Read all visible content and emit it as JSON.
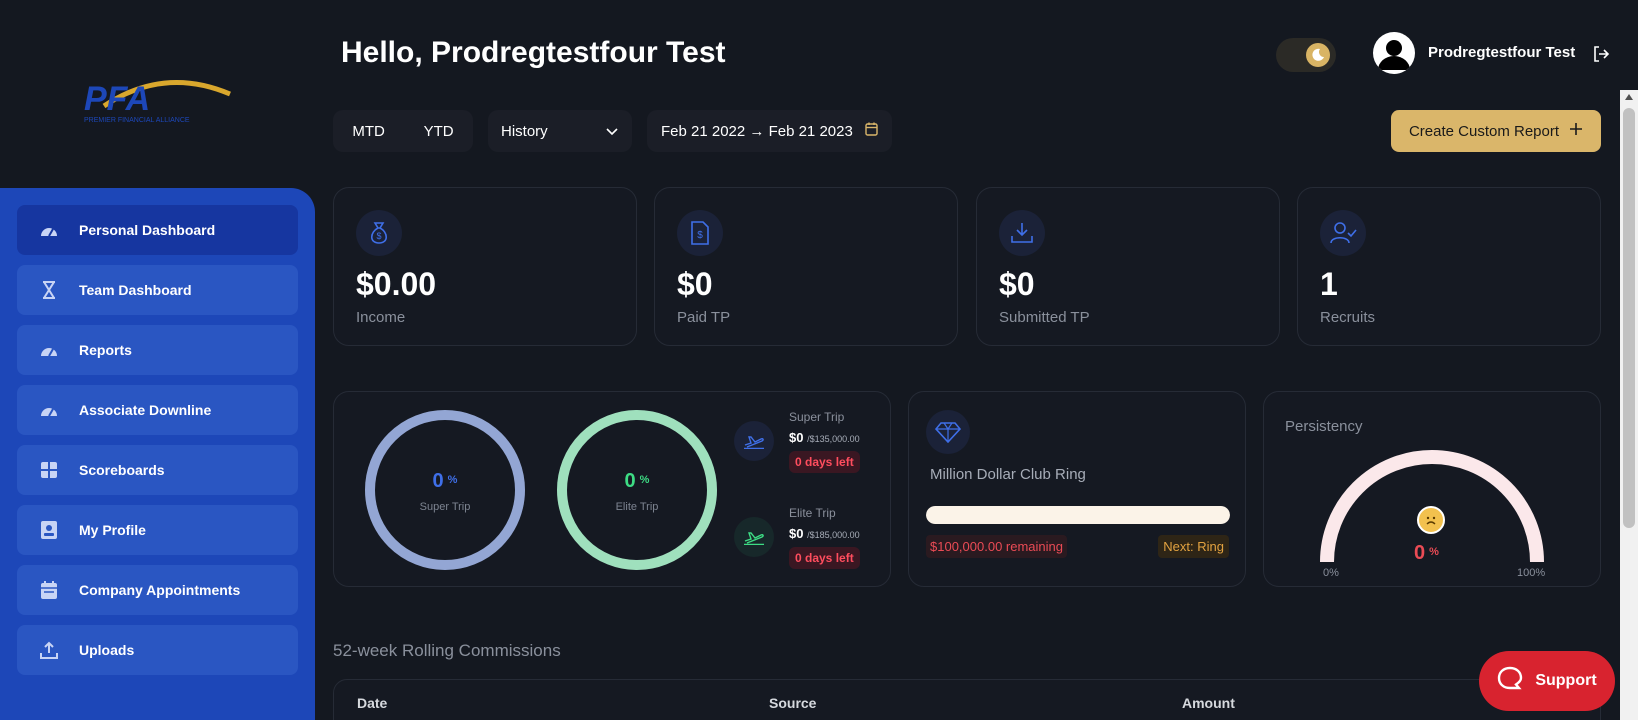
{
  "brand": {
    "logo_text": "PFA",
    "logo_subtext": "PREMIER FINANCIAL ALLIANCE"
  },
  "header": {
    "greeting": "Hello, Prodregtestfour Test",
    "username": "Prodregtestfour Test"
  },
  "filters": {
    "mtd": "MTD",
    "ytd": "YTD",
    "history": "History",
    "date_range": "Feb 21 2022 → Feb 21 2023",
    "create_report": "Create Custom Report"
  },
  "sidebar": {
    "items": [
      {
        "label": "Personal Dashboard",
        "icon": "gauge-icon",
        "active": true
      },
      {
        "label": "Team Dashboard",
        "icon": "hourglass-icon",
        "active": false
      },
      {
        "label": "Reports",
        "icon": "gauge-icon",
        "active": false
      },
      {
        "label": "Associate Downline",
        "icon": "gauge-icon",
        "active": false
      },
      {
        "label": "Scoreboards",
        "icon": "grid-icon",
        "active": false
      },
      {
        "label": "My Profile",
        "icon": "id-card-icon",
        "active": false
      },
      {
        "label": "Company Appointments",
        "icon": "calendar-icon",
        "active": false
      },
      {
        "label": "Uploads",
        "icon": "upload-icon",
        "active": false
      }
    ]
  },
  "stats": [
    {
      "value": "$0.00",
      "label": "Income",
      "icon": "money-bag-icon"
    },
    {
      "value": "$0",
      "label": "Paid TP",
      "icon": "invoice-icon"
    },
    {
      "value": "$0",
      "label": "Submitted TP",
      "icon": "download-tray-icon"
    },
    {
      "value": "1",
      "label": "Recruits",
      "icon": "user-check-icon"
    }
  ],
  "trips": {
    "super": {
      "title": "Super Trip",
      "pct": "0",
      "unit": "%",
      "progress": 0,
      "amount": "$0",
      "target": "/$135,000.00",
      "days_left": "0 days left"
    },
    "elite": {
      "title": "Elite Trip",
      "pct": "0",
      "unit": "%",
      "progress": 0,
      "amount": "$0",
      "target": "/$185,000.00",
      "days_left": "0 days left"
    }
  },
  "ring": {
    "title": "Million Dollar Club Ring",
    "progress": 1.0,
    "remaining": "$100,000.00 remaining",
    "next": "Next: Ring"
  },
  "persistency": {
    "title": "Persistency",
    "value": "0",
    "unit": "%",
    "progress": 0,
    "min_label": "0%",
    "max_label": "100%"
  },
  "commissions": {
    "title": "52-week Rolling Commissions",
    "columns": [
      "Date",
      "Source",
      "Amount"
    ]
  },
  "support": {
    "label": "Support"
  },
  "colors": {
    "background": "#141820",
    "sidebar": "#1d47b8",
    "gold": "#dab66a",
    "super_ring": "#93a6d4",
    "elite_ring": "#9fe0bd",
    "danger": "#ea4b55",
    "support": "#d8232f"
  }
}
